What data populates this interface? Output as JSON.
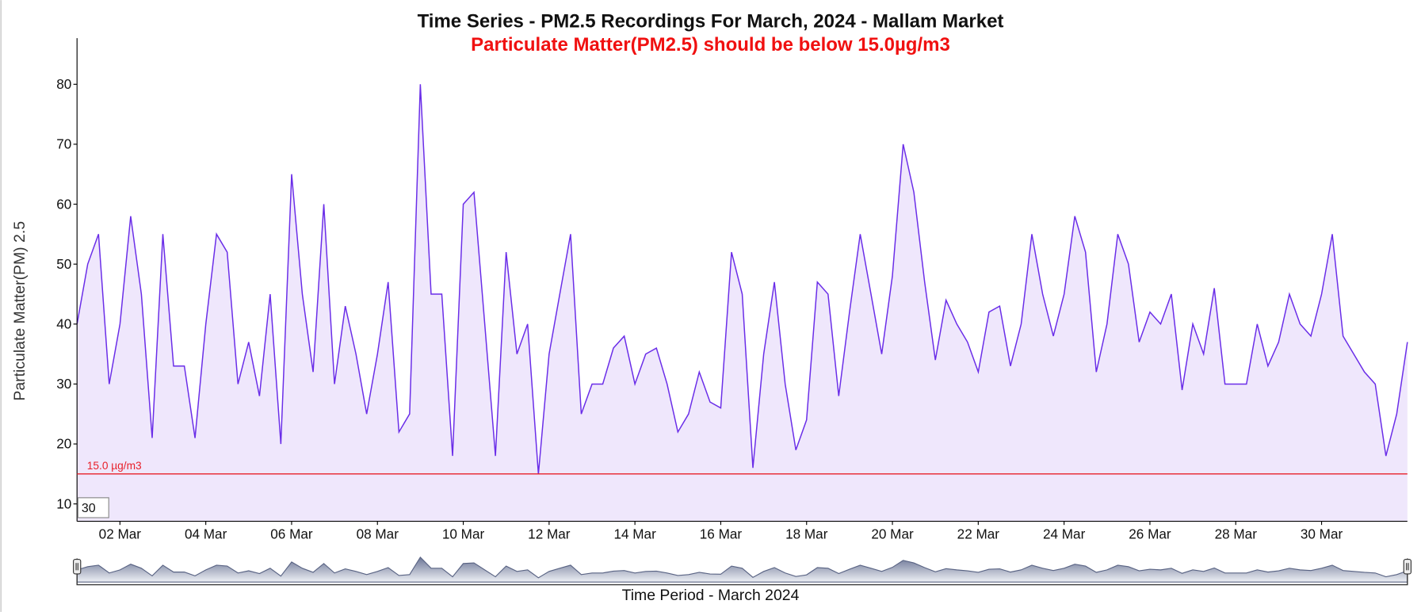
{
  "chart_data": {
    "type": "line",
    "title": "Time Series - PM2.5 Recordings For March, 2024 - Mallam Market",
    "subtitle": "Particulate Matter(PM2.5) should be below 15.0µg/m3",
    "y_label": "Particulate Matter(PM) 2.5",
    "x_label": "Time Period - March 2024",
    "roll_period": "30",
    "threshold": {
      "value": 15,
      "label": "15.0 µg/m3",
      "color": "#e8202a"
    },
    "xlim": [
      1,
      32
    ],
    "ylim": [
      7.1,
      87.7
    ],
    "yticks": [
      10,
      20,
      30,
      40,
      50,
      60,
      70,
      80
    ],
    "xticks": [
      {
        "value": 2,
        "label": "02 Mar"
      },
      {
        "value": 4,
        "label": "04 Mar"
      },
      {
        "value": 6,
        "label": "06 Mar"
      },
      {
        "value": 8,
        "label": "08 Mar"
      },
      {
        "value": 10,
        "label": "10 Mar"
      },
      {
        "value": 12,
        "label": "12 Mar"
      },
      {
        "value": 14,
        "label": "14 Mar"
      },
      {
        "value": 16,
        "label": "16 Mar"
      },
      {
        "value": 18,
        "label": "18 Mar"
      },
      {
        "value": 20,
        "label": "20 Mar"
      },
      {
        "value": 22,
        "label": "22 Mar"
      },
      {
        "value": 24,
        "label": "24 Mar"
      },
      {
        "value": 26,
        "label": "26 Mar"
      },
      {
        "value": 28,
        "label": "28 Mar"
      },
      {
        "value": 30,
        "label": "30 Mar"
      }
    ],
    "x": [
      1,
      1.25,
      1.5,
      1.75,
      2,
      2.25,
      2.5,
      2.75,
      3,
      3.25,
      3.5,
      3.75,
      4,
      4.25,
      4.5,
      4.75,
      5,
      5.25,
      5.5,
      5.75,
      6,
      6.25,
      6.5,
      6.75,
      7,
      7.25,
      7.5,
      7.75,
      8,
      8.25,
      8.5,
      8.75,
      9,
      9.25,
      9.5,
      9.75,
      10,
      10.25,
      10.5,
      10.75,
      11,
      11.25,
      11.5,
      11.75,
      12,
      12.25,
      12.5,
      12.75,
      13,
      13.25,
      13.5,
      13.75,
      14,
      14.25,
      14.5,
      14.75,
      15,
      15.25,
      15.5,
      15.75,
      16,
      16.25,
      16.5,
      16.75,
      17,
      17.25,
      17.5,
      17.75,
      18,
      18.25,
      18.5,
      18.75,
      19,
      19.25,
      19.5,
      19.75,
      20,
      20.25,
      20.5,
      20.75,
      21,
      21.25,
      21.5,
      21.75,
      22,
      22.25,
      22.5,
      22.75,
      23,
      23.25,
      23.5,
      23.75,
      24,
      24.25,
      24.5,
      24.75,
      25,
      25.25,
      25.5,
      25.75,
      26,
      26.25,
      26.5,
      26.75,
      27,
      27.25,
      27.5,
      27.75,
      28,
      28.25,
      28.5,
      28.75,
      29,
      29.25,
      29.5,
      29.75,
      30,
      30.25,
      30.5,
      30.75,
      31,
      31.25,
      31.5,
      31.75,
      32
    ],
    "series": [
      {
        "name": "PM2.5",
        "color": "#6a2de8",
        "fill": "#efe7fc",
        "values": [
          40,
          50,
          55,
          30,
          40,
          58,
          45,
          21,
          55,
          33,
          33,
          21,
          40,
          55,
          52,
          30,
          37,
          28,
          45,
          20,
          65,
          45,
          32,
          60,
          30,
          43,
          35,
          25,
          35,
          47,
          22,
          25,
          80,
          45,
          45,
          18,
          60,
          62,
          40,
          18,
          52,
          35,
          40,
          15,
          35,
          45,
          55,
          25,
          30,
          30,
          36,
          38,
          30,
          35,
          36,
          30,
          22,
          25,
          32,
          27,
          26,
          52,
          45,
          16,
          35,
          47,
          30,
          19,
          24,
          47,
          45,
          28,
          42,
          55,
          45,
          35,
          48,
          70,
          62,
          47,
          34,
          44,
          40,
          37,
          32,
          42,
          43,
          33,
          40,
          55,
          45,
          38,
          45,
          58,
          52,
          32,
          40,
          55,
          50,
          37,
          42,
          40,
          45,
          29,
          40,
          35,
          46,
          30,
          30,
          30,
          40,
          33,
          37,
          45,
          40,
          38,
          45,
          55,
          38,
          35,
          32,
          30,
          18,
          25,
          37
        ]
      }
    ]
  }
}
